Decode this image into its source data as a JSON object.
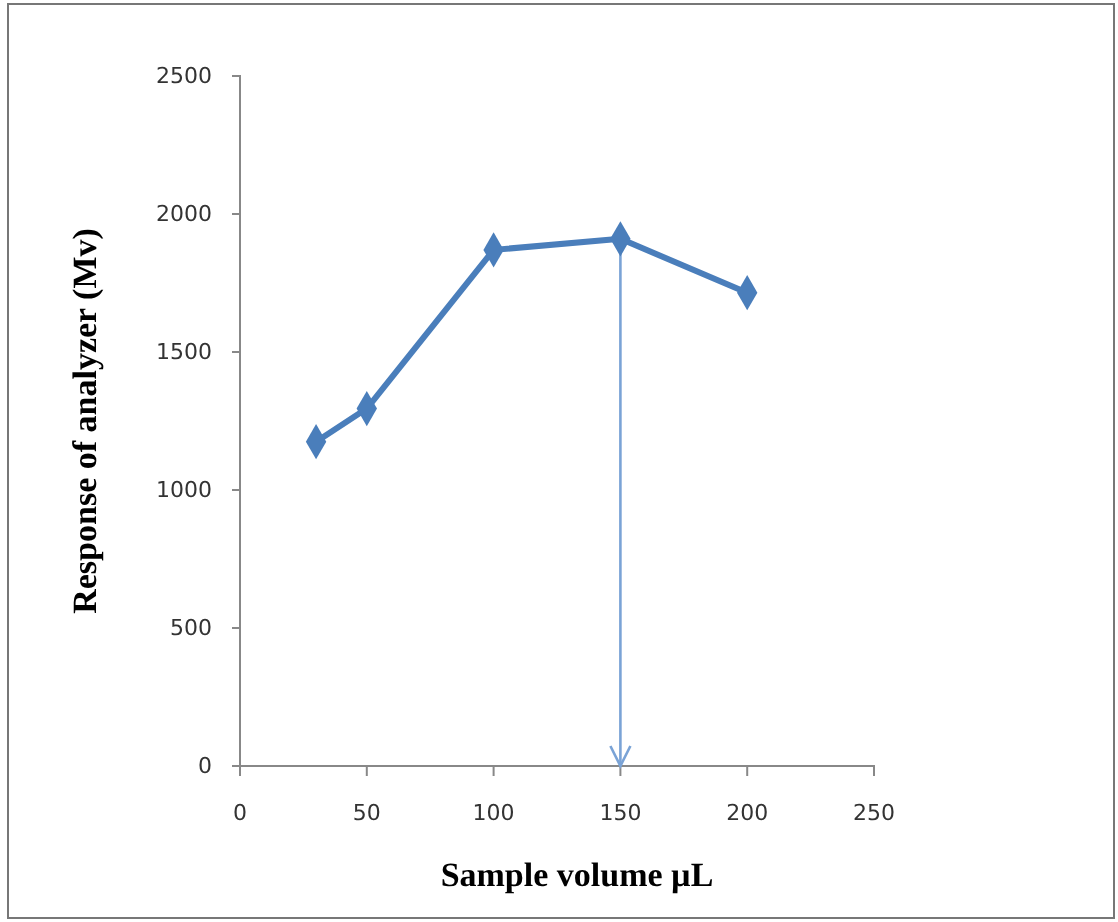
{
  "chart_data": {
    "type": "line",
    "xlabel": "Sample volume µL",
    "ylabel": "Response of  analyzer (Mv)",
    "x": [
      30,
      50,
      100,
      150,
      200
    ],
    "series": [
      {
        "color": "#4a7ebb",
        "values": [
          1175,
          1295,
          1870,
          1910,
          1715
        ]
      }
    ],
    "xlim": [
      0,
      250
    ],
    "xticks": [
      0,
      50,
      100,
      150,
      200,
      250
    ],
    "ylim": [
      0,
      2500
    ],
    "yticks": [
      0,
      500,
      1000,
      1500,
      2000,
      2500
    ],
    "ref_lines": [
      {
        "axis": "x",
        "value": 150,
        "color": "#7aa3d6"
      }
    ],
    "grid": false,
    "marker": "diamond",
    "line_style": "solid"
  }
}
